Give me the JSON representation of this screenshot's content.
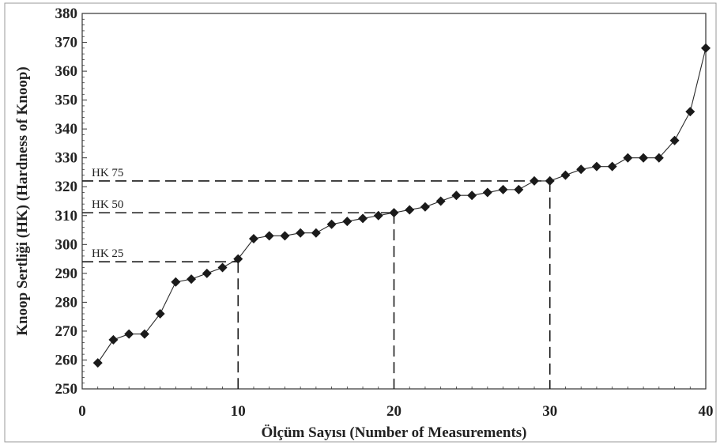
{
  "colors": {
    "marker": "#1a1a1a",
    "line": "#2a2a2a",
    "frame": "#333333",
    "reference_line": "#1a1a1a"
  },
  "chart_data": {
    "type": "line",
    "title": "",
    "xlabel": "Ölçüm Sayısı (Number of Measurements)",
    "ylabel": "Knoop  Sertliği (HK) (Hardness of  Knoop)",
    "xlim": [
      0,
      40
    ],
    "ylim": [
      250,
      380
    ],
    "x_ticks": [
      0,
      10,
      20,
      30,
      40
    ],
    "y_ticks": [
      250,
      260,
      270,
      280,
      290,
      300,
      310,
      320,
      330,
      340,
      350,
      360,
      370,
      380
    ],
    "grid": false,
    "legend": "none",
    "marker": "diamond",
    "series": [
      {
        "x": [
          1,
          2,
          3,
          4,
          5,
          6,
          7,
          8,
          9,
          10,
          11,
          12,
          13,
          14,
          15,
          16,
          17,
          18,
          19,
          20,
          21,
          22,
          23,
          24,
          25,
          26,
          27,
          28,
          29,
          30,
          31,
          32,
          33,
          34,
          35,
          36,
          37,
          38,
          39,
          40
        ],
        "values": [
          259,
          267,
          269,
          269,
          276,
          287,
          288,
          290,
          292,
          295,
          302,
          303,
          303,
          304,
          304,
          307,
          308,
          309,
          310,
          311,
          312,
          313,
          315,
          317,
          317,
          318,
          319,
          319,
          322,
          322,
          324,
          326,
          327,
          327,
          330,
          330,
          330,
          336,
          346,
          368
        ]
      }
    ],
    "reference_lines": [
      {
        "label": "HK 25",
        "x": 10,
        "y": 294
      },
      {
        "label": "HK 50",
        "x": 20,
        "y": 311
      },
      {
        "label": "HK 75",
        "x": 30,
        "y": 322
      }
    ]
  }
}
